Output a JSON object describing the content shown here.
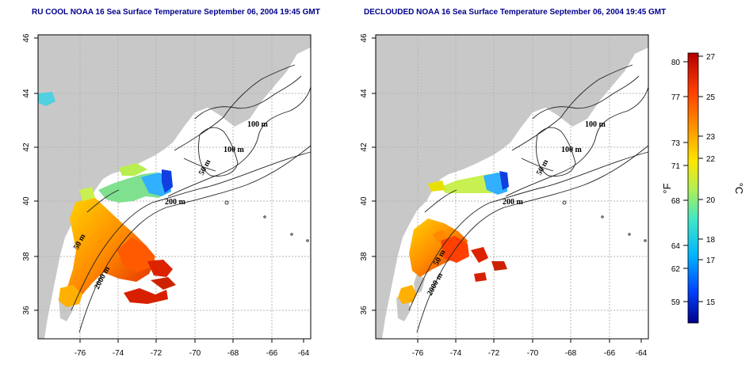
{
  "panels": [
    {
      "id": "left",
      "title": "RU COOL NOAA 16 Sea Surface Temperature September 06, 2004 19:45 GMT"
    },
    {
      "id": "right",
      "title": "DECLOUDED NOAA 16 Sea Surface Temperature September 06, 2004 19:45 GMT"
    }
  ],
  "axes": {
    "x_ticks": [
      "-76",
      "-74",
      "-72",
      "-70",
      "-68",
      "-66",
      "-64"
    ],
    "y_ticks": [
      "36",
      "38",
      "40",
      "42",
      "44",
      "46"
    ]
  },
  "contour_labels": {
    "left": [
      "100 m",
      "100 m",
      "50 m",
      "200 m",
      "50 m",
      "2000 m"
    ],
    "right": [
      "100 m",
      "100 m",
      "50 m",
      "200 m",
      "50 m",
      "2000 m"
    ]
  },
  "colorbar": {
    "fahrenheit_label": "°F",
    "celsius_label": "°C",
    "fahrenheit_ticks": [
      "80",
      "77",
      "73",
      "71",
      "68",
      "64",
      "62",
      "59"
    ],
    "celsius_ticks": [
      "27",
      "25",
      "23",
      "22",
      "20",
      "18",
      "17",
      "15"
    ],
    "colors": [
      "#00008b",
      "#0044ff",
      "#00b4ff",
      "#3ee6c8",
      "#b4f050",
      "#ffe600",
      "#ff9600",
      "#ff3c00",
      "#b40000"
    ]
  },
  "colors": {
    "land": "#c8c8c8",
    "title": "#00008b",
    "grid": "#b4b4b4"
  }
}
